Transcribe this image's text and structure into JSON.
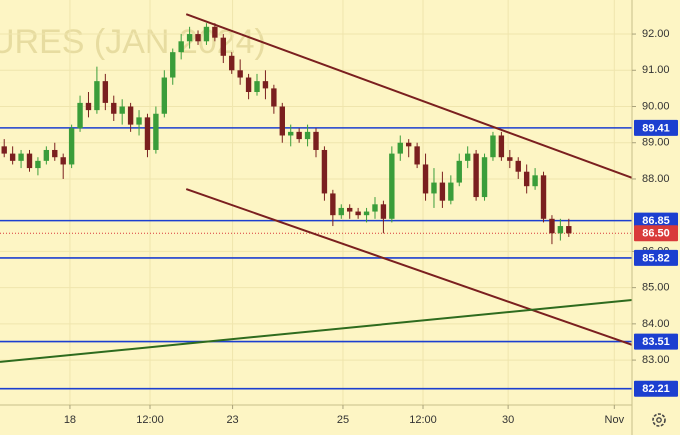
{
  "chart_data": {
    "type": "candlestick",
    "watermark": "URES (JAN 2024)",
    "up_color": "#3a9d3a",
    "down_color": "#7a1f1f",
    "background": "#fdf5c4",
    "grid": true,
    "xlim": [
      0,
      75
    ],
    "xticks": [
      {
        "value": 8.3,
        "label": "18"
      },
      {
        "value": 17.8,
        "label": "12:00"
      },
      {
        "value": 27.6,
        "label": "23"
      },
      {
        "value": 40.7,
        "label": "25"
      },
      {
        "value": 50.2,
        "label": "12:00"
      },
      {
        "value": 60.3,
        "label": "30"
      },
      {
        "value": 72.9,
        "label": "Nov"
      }
    ],
    "ylim": [
      81.76,
      92.94
    ],
    "yticks": [
      {
        "value": 83,
        "label": "83.00"
      },
      {
        "value": 84,
        "label": "84.00"
      },
      {
        "value": 85,
        "label": "85.00"
      },
      {
        "value": 86,
        "label": "86.00"
      },
      {
        "value": 88,
        "label": "88.00"
      },
      {
        "value": 89,
        "label": "89.00"
      },
      {
        "value": 90,
        "label": "90.00"
      },
      {
        "value": 91,
        "label": "91.00"
      },
      {
        "value": 92,
        "label": "92.00"
      }
    ],
    "ohlc": [
      [
        88.9,
        89.1,
        88.6,
        88.7
      ],
      [
        88.7,
        88.9,
        88.4,
        88.5
      ],
      [
        88.5,
        88.8,
        88.3,
        88.7
      ],
      [
        88.7,
        88.8,
        88.2,
        88.3
      ],
      [
        88.3,
        88.6,
        88.1,
        88.5
      ],
      [
        88.5,
        88.9,
        88.4,
        88.8
      ],
      [
        88.8,
        89.0,
        88.5,
        88.6
      ],
      [
        88.6,
        88.7,
        88.0,
        88.4
      ],
      [
        88.4,
        89.5,
        88.3,
        89.4
      ],
      [
        89.4,
        90.3,
        89.3,
        90.1
      ],
      [
        90.1,
        90.4,
        89.7,
        89.9
      ],
      [
        89.9,
        91.1,
        89.8,
        90.7
      ],
      [
        90.7,
        90.9,
        89.9,
        90.1
      ],
      [
        90.1,
        90.3,
        89.6,
        89.8
      ],
      [
        89.8,
        90.2,
        89.5,
        90.0
      ],
      [
        90.0,
        90.1,
        89.3,
        89.5
      ],
      [
        89.5,
        89.9,
        89.2,
        89.7
      ],
      [
        89.7,
        89.8,
        88.6,
        88.8
      ],
      [
        88.8,
        90.0,
        88.7,
        89.8
      ],
      [
        89.8,
        91.0,
        89.7,
        90.8
      ],
      [
        90.8,
        91.6,
        90.6,
        91.5
      ],
      [
        91.5,
        92.0,
        91.3,
        91.8
      ],
      [
        91.8,
        92.2,
        91.6,
        92.0
      ],
      [
        92.0,
        92.1,
        91.7,
        91.8
      ],
      [
        91.8,
        92.3,
        91.7,
        92.2
      ],
      [
        92.2,
        92.3,
        91.8,
        91.9
      ],
      [
        91.9,
        92.0,
        91.2,
        91.4
      ],
      [
        91.4,
        91.5,
        90.9,
        91.0
      ],
      [
        91.0,
        91.3,
        90.6,
        90.8
      ],
      [
        90.8,
        90.9,
        90.2,
        90.4
      ],
      [
        90.4,
        90.9,
        90.3,
        90.7
      ],
      [
        90.7,
        91.0,
        90.2,
        90.5
      ],
      [
        90.5,
        90.6,
        89.8,
        90.0
      ],
      [
        90.0,
        90.1,
        89.0,
        89.2
      ],
      [
        89.2,
        89.5,
        88.9,
        89.3
      ],
      [
        89.3,
        89.4,
        89.0,
        89.1
      ],
      [
        89.1,
        89.5,
        88.9,
        89.3
      ],
      [
        89.3,
        89.4,
        88.6,
        88.8
      ],
      [
        88.8,
        88.9,
        87.4,
        87.6
      ],
      [
        87.6,
        87.7,
        86.7,
        87.0
      ],
      [
        87.0,
        87.3,
        86.9,
        87.2
      ],
      [
        87.2,
        87.3,
        86.9,
        87.1
      ],
      [
        87.1,
        87.2,
        86.9,
        87.0
      ],
      [
        87.0,
        87.2,
        86.8,
        87.1
      ],
      [
        87.1,
        87.5,
        86.9,
        87.3
      ],
      [
        87.3,
        87.4,
        86.5,
        86.9
      ],
      [
        86.9,
        88.9,
        86.8,
        88.7
      ],
      [
        88.7,
        89.2,
        88.5,
        89.0
      ],
      [
        89.0,
        89.1,
        88.6,
        88.9
      ],
      [
        88.9,
        89.0,
        88.3,
        88.4
      ],
      [
        88.4,
        88.7,
        87.4,
        87.6
      ],
      [
        87.6,
        88.3,
        87.2,
        87.9
      ],
      [
        87.9,
        88.2,
        87.2,
        87.4
      ],
      [
        87.4,
        88.1,
        87.3,
        87.9
      ],
      [
        87.9,
        88.7,
        87.8,
        88.5
      ],
      [
        88.5,
        88.9,
        88.3,
        88.7
      ],
      [
        88.7,
        88.8,
        87.4,
        87.5
      ],
      [
        87.5,
        88.7,
        87.4,
        88.6
      ],
      [
        88.6,
        89.3,
        88.5,
        89.2
      ],
      [
        89.2,
        89.3,
        88.5,
        88.6
      ],
      [
        88.6,
        88.8,
        88.3,
        88.5
      ],
      [
        88.5,
        88.6,
        88.0,
        88.2
      ],
      [
        88.2,
        88.4,
        87.6,
        87.8
      ],
      [
        87.8,
        88.3,
        87.7,
        88.1
      ],
      [
        88.1,
        88.2,
        86.8,
        86.9
      ],
      [
        86.9,
        87.0,
        86.2,
        86.5
      ],
      [
        86.5,
        86.9,
        86.3,
        86.7
      ],
      [
        86.7,
        86.9,
        86.4,
        86.5
      ]
    ],
    "levels": [
      {
        "value": 89.41,
        "color": "#1c3fd0"
      },
      {
        "value": 86.85,
        "color": "#1c3fd0"
      },
      {
        "value": 85.82,
        "color": "#1c3fd0"
      },
      {
        "value": 83.51,
        "color": "#1c3fd0"
      },
      {
        "value": 82.21,
        "color": "#1c3fd0"
      }
    ],
    "last_price": {
      "value": 86.5,
      "label": "86.50",
      "color": "#d93a3a"
    },
    "trendlines": [
      {
        "color": "#7a1f1f",
        "x": [
          22.1,
          75
        ],
        "y": [
          92.55,
          88.03
        ]
      },
      {
        "color": "#7a1f1f",
        "x": [
          22.1,
          75
        ],
        "y": [
          87.72,
          83.42
        ]
      },
      {
        "color": "#2e6b1e",
        "x": [
          0,
          75
        ],
        "y": [
          82.95,
          84.66
        ]
      }
    ]
  }
}
